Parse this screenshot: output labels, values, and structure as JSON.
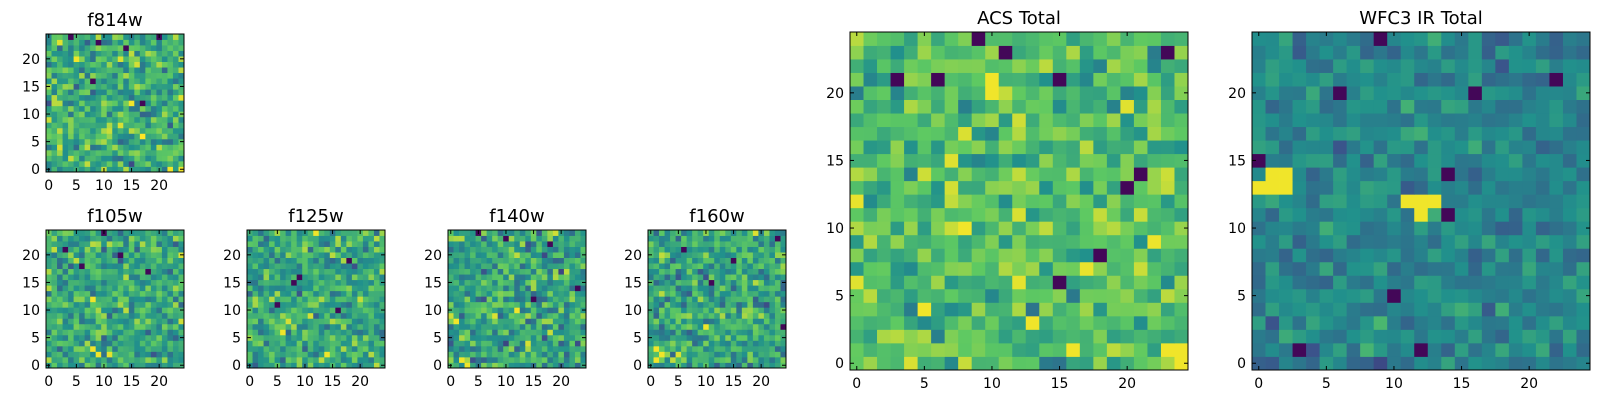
{
  "figure": {
    "colormap": "viridis",
    "colormap_stops": [
      "#440154",
      "#3b528b",
      "#21918c",
      "#5ec962",
      "#fde725"
    ]
  },
  "chart_data": [
    {
      "type": "heatmap",
      "title": "f814w",
      "grid_size": [
        25,
        25
      ],
      "xlim": [
        0,
        24
      ],
      "ylim": [
        0,
        24
      ],
      "xticks": [
        0,
        5,
        10,
        15,
        20
      ],
      "yticks": [
        0,
        5,
        10,
        15,
        20
      ],
      "xtick_labels": [
        "0",
        "5",
        "10",
        "15",
        "20"
      ],
      "ytick_labels": [
        "0",
        "5",
        "10",
        "15",
        "20"
      ],
      "values_description": "noise field, normalized 0-1",
      "seed": 11,
      "base": 0.62,
      "spread": 0.22,
      "hot_spots": [
        [
          24,
          0
        ],
        [
          22,
          0
        ],
        [
          5,
          20
        ]
      ],
      "cold_spots": [
        [
          4,
          24
        ],
        [
          9,
          23
        ],
        [
          14,
          22
        ],
        [
          20,
          24
        ],
        [
          17,
          12
        ],
        [
          8,
          16
        ]
      ]
    },
    {
      "type": "heatmap",
      "title": "f105w",
      "grid_size": [
        25,
        25
      ],
      "xlim": [
        0,
        24
      ],
      "ylim": [
        0,
        24
      ],
      "xticks": [
        0,
        5,
        10,
        15,
        20
      ],
      "yticks": [
        0,
        5,
        10,
        15,
        20
      ],
      "xtick_labels": [
        "0",
        "5",
        "10",
        "15",
        "20"
      ],
      "ytick_labels": [
        "0",
        "5",
        "10",
        "15",
        "20"
      ],
      "seed": 23,
      "base": 0.6,
      "spread": 0.2,
      "hot_spots": [
        [
          8,
          12
        ],
        [
          8,
          3
        ],
        [
          9,
          2
        ]
      ],
      "cold_spots": [
        [
          10,
          24
        ],
        [
          3,
          21
        ],
        [
          6,
          18
        ],
        [
          13,
          20
        ],
        [
          18,
          17
        ]
      ]
    },
    {
      "type": "heatmap",
      "title": "f125w",
      "grid_size": [
        25,
        25
      ],
      "xlim": [
        0,
        24
      ],
      "ylim": [
        0,
        24
      ],
      "xticks": [
        0,
        5,
        10,
        15,
        20
      ],
      "yticks": [
        0,
        5,
        10,
        15,
        20
      ],
      "xtick_labels": [
        "0",
        "5",
        "10",
        "15",
        "20"
      ],
      "ytick_labels": [
        "0",
        "5",
        "10",
        "15",
        "20"
      ],
      "seed": 37,
      "base": 0.6,
      "spread": 0.2,
      "hot_spots": [
        [
          12,
          24
        ],
        [
          6,
          6
        ],
        [
          14,
          2
        ]
      ],
      "cold_spots": [
        [
          8,
          15
        ],
        [
          9,
          16
        ],
        [
          5,
          11
        ],
        [
          18,
          19
        ],
        [
          16,
          10
        ]
      ]
    },
    {
      "type": "heatmap",
      "title": "f140w",
      "grid_size": [
        25,
        25
      ],
      "xlim": [
        0,
        24
      ],
      "ylim": [
        0,
        24
      ],
      "xticks": [
        0,
        5,
        10,
        15,
        20
      ],
      "yticks": [
        0,
        5,
        10,
        15,
        20
      ],
      "xtick_labels": [
        "0",
        "5",
        "10",
        "15",
        "20"
      ],
      "ytick_labels": [
        "0",
        "5",
        "10",
        "15",
        "20"
      ],
      "seed": 51,
      "base": 0.58,
      "spread": 0.22,
      "hot_spots": [
        [
          2,
          1
        ],
        [
          3,
          0
        ],
        [
          12,
          10
        ],
        [
          1,
          8
        ]
      ],
      "cold_spots": [
        [
          5,
          24
        ],
        [
          10,
          23
        ],
        [
          18,
          22
        ],
        [
          23,
          14
        ],
        [
          15,
          12
        ]
      ]
    },
    {
      "type": "heatmap",
      "title": "f160w",
      "grid_size": [
        25,
        25
      ],
      "xlim": [
        0,
        24
      ],
      "ylim": [
        0,
        24
      ],
      "xticks": [
        0,
        5,
        10,
        15,
        20
      ],
      "yticks": [
        0,
        5,
        10,
        15,
        20
      ],
      "xtick_labels": [
        "0",
        "5",
        "10",
        "15",
        "20"
      ],
      "ytick_labels": [
        "0",
        "5",
        "10",
        "15",
        "20"
      ],
      "seed": 67,
      "base": 0.6,
      "spread": 0.2,
      "hot_spots": [
        [
          1,
          1
        ],
        [
          2,
          2
        ],
        [
          1,
          3
        ],
        [
          10,
          7
        ]
      ],
      "cold_spots": [
        [
          24,
          7
        ],
        [
          23,
          23
        ],
        [
          11,
          15
        ],
        [
          15,
          19
        ],
        [
          6,
          21
        ]
      ]
    },
    {
      "type": "heatmap",
      "title": "ACS Total",
      "grid_size": [
        25,
        25
      ],
      "xlim": [
        0,
        24
      ],
      "ylim": [
        0,
        24
      ],
      "xticks": [
        0,
        5,
        10,
        15,
        20
      ],
      "yticks": [
        0,
        5,
        10,
        15,
        20
      ],
      "xtick_labels": [
        "0",
        "5",
        "10",
        "15",
        "20"
      ],
      "ytick_labels": [
        "0",
        "5",
        "10",
        "15",
        "20"
      ],
      "seed": 83,
      "base": 0.7,
      "spread": 0.18,
      "hot_spots": [
        [
          24,
          0
        ],
        [
          24,
          1
        ],
        [
          23,
          1
        ],
        [
          10,
          20
        ],
        [
          10,
          21
        ],
        [
          8,
          10
        ],
        [
          13,
          3
        ],
        [
          16,
          1
        ],
        [
          5,
          4
        ]
      ],
      "cold_spots": [
        [
          9,
          24
        ],
        [
          11,
          23
        ],
        [
          3,
          21
        ],
        [
          6,
          21
        ],
        [
          15,
          21
        ],
        [
          23,
          23
        ],
        [
          20,
          13
        ],
        [
          21,
          14
        ],
        [
          15,
          6
        ],
        [
          18,
          8
        ]
      ]
    },
    {
      "type": "heatmap",
      "title": "WFC3 IR Total",
      "grid_size": [
        25,
        25
      ],
      "xlim": [
        0,
        24
      ],
      "ylim": [
        0,
        24
      ],
      "xticks": [
        0,
        5,
        10,
        15,
        20
      ],
      "yticks": [
        0,
        5,
        10,
        15,
        20
      ],
      "xtick_labels": [
        "0",
        "5",
        "10",
        "15",
        "20"
      ],
      "ytick_labels": [
        "0",
        "5",
        "10",
        "15",
        "20"
      ],
      "seed": 97,
      "base": 0.45,
      "spread": 0.12,
      "hot_spots": [
        [
          0,
          13
        ],
        [
          1,
          13
        ],
        [
          2,
          13
        ],
        [
          1,
          14
        ],
        [
          2,
          14
        ],
        [
          11,
          12
        ],
        [
          12,
          12
        ],
        [
          13,
          12
        ],
        [
          12,
          11
        ]
      ],
      "cold_spots": [
        [
          9,
          24
        ],
        [
          6,
          20
        ],
        [
          0,
          15
        ],
        [
          14,
          11
        ],
        [
          14,
          14
        ],
        [
          16,
          20
        ],
        [
          22,
          21
        ],
        [
          12,
          1
        ],
        [
          3,
          1
        ],
        [
          10,
          5
        ]
      ]
    }
  ]
}
